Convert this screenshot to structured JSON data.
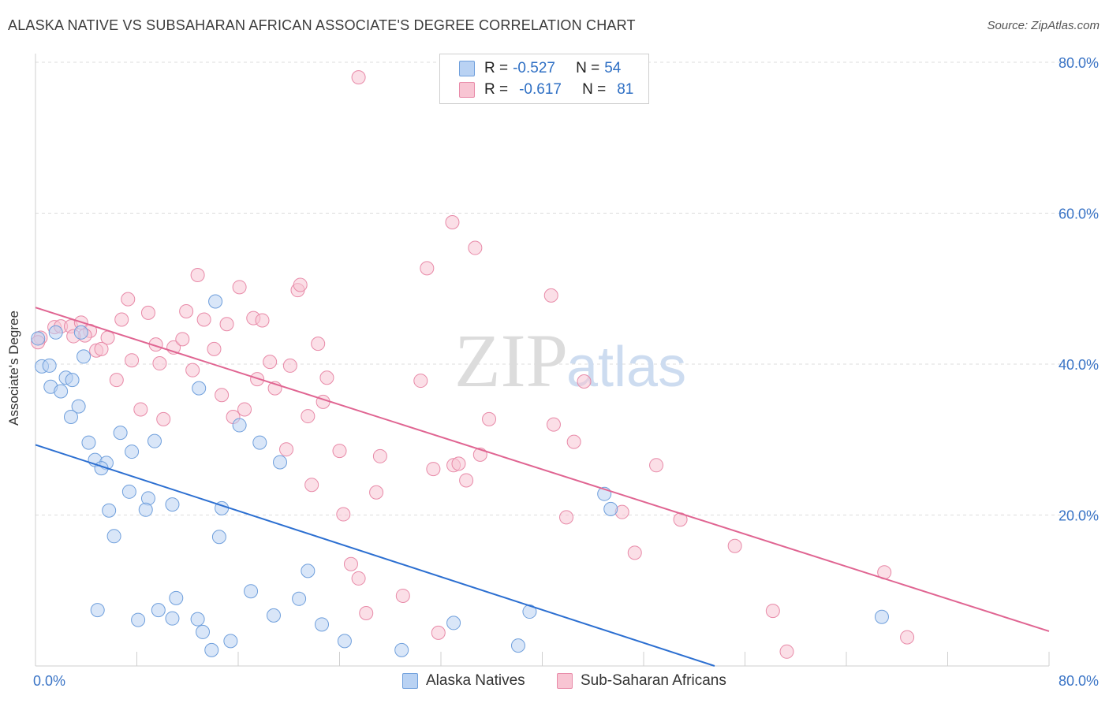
{
  "title": "ALASKA NATIVE VS SUBSAHARAN AFRICAN ASSOCIATE'S DEGREE CORRELATION CHART",
  "source": "Source: ZipAtlas.com",
  "watermark": {
    "zip": "ZIP",
    "atlas": "atlas"
  },
  "legend": {
    "r_label": "R =",
    "n_label": "N =",
    "rows": [
      {
        "r": "-0.527",
        "n": "54",
        "fill": "#b9d2f3",
        "stroke": "#6f9fdc"
      },
      {
        "r": "-0.617",
        "n": "81",
        "fill": "#f8c5d3",
        "stroke": "#e88aa8"
      }
    ]
  },
  "bottom_legend": [
    {
      "label": "Alaska Natives",
      "fill": "#b9d2f3",
      "stroke": "#6f9fdc"
    },
    {
      "label": "Sub-Saharan Africans",
      "fill": "#f8c5d3",
      "stroke": "#e88aa8"
    }
  ],
  "chart_data": {
    "type": "scatter",
    "title": "ALASKA NATIVE VS SUBSAHARAN AFRICAN ASSOCIATE'S DEGREE CORRELATION CHART",
    "xlabel": "",
    "ylabel": "Associate's Degree",
    "xlim": [
      0,
      80
    ],
    "ylim": [
      0,
      80
    ],
    "x_tick_labels": [
      "0.0%",
      "80.0%"
    ],
    "y_tick_labels": [
      "20.0%",
      "40.0%",
      "60.0%",
      "80.0%"
    ],
    "y_ticks": [
      20,
      40,
      60,
      80
    ],
    "grid": "horizontal dashed",
    "legend_position": "top-center",
    "series": [
      {
        "name": "Alaska Natives",
        "color": "#6f9fdc",
        "line_color": "#2c6fd1",
        "trend": {
          "x": [
            0,
            53.6
          ],
          "y": [
            29.3,
            0
          ]
        },
        "points": [
          [
            0.2,
            43.4
          ],
          [
            0.5,
            39.7
          ],
          [
            1.1,
            39.8
          ],
          [
            1.6,
            44.2
          ],
          [
            1.2,
            37.0
          ],
          [
            2.0,
            36.4
          ],
          [
            2.4,
            38.2
          ],
          [
            2.9,
            37.9
          ],
          [
            3.4,
            34.4
          ],
          [
            2.8,
            33.0
          ],
          [
            3.6,
            44.2
          ],
          [
            3.8,
            41.0
          ],
          [
            4.2,
            29.6
          ],
          [
            4.7,
            27.3
          ],
          [
            5.6,
            26.9
          ],
          [
            5.2,
            26.2
          ],
          [
            6.7,
            30.9
          ],
          [
            5.8,
            20.6
          ],
          [
            7.6,
            28.4
          ],
          [
            7.4,
            23.1
          ],
          [
            6.2,
            17.2
          ],
          [
            9.4,
            29.8
          ],
          [
            8.9,
            22.2
          ],
          [
            8.7,
            20.7
          ],
          [
            10.8,
            21.4
          ],
          [
            14.2,
            48.3
          ],
          [
            12.9,
            36.8
          ],
          [
            14.5,
            17.1
          ],
          [
            14.7,
            20.9
          ],
          [
            16.1,
            31.9
          ],
          [
            17.7,
            29.6
          ],
          [
            19.3,
            27.0
          ],
          [
            17.0,
            9.9
          ],
          [
            18.8,
            6.7
          ],
          [
            20.8,
            8.9
          ],
          [
            21.5,
            12.6
          ],
          [
            22.6,
            5.5
          ],
          [
            24.4,
            3.3
          ],
          [
            28.9,
            2.1
          ],
          [
            33.0,
            5.7
          ],
          [
            38.1,
            2.7
          ],
          [
            39.0,
            7.2
          ],
          [
            44.9,
            22.8
          ],
          [
            45.4,
            20.8
          ],
          [
            66.8,
            6.5
          ],
          [
            4.9,
            7.4
          ],
          [
            8.1,
            6.1
          ],
          [
            9.7,
            7.4
          ],
          [
            10.8,
            6.3
          ],
          [
            11.1,
            9.0
          ],
          [
            12.8,
            6.2
          ],
          [
            13.2,
            4.5
          ],
          [
            13.9,
            2.1
          ],
          [
            15.4,
            3.3
          ]
        ]
      },
      {
        "name": "Sub-Saharan Africans",
        "color": "#e88aa8",
        "line_color": "#e06592",
        "trend": {
          "x": [
            0,
            80
          ],
          "y": [
            47.5,
            4.6
          ]
        },
        "points": [
          [
            0.4,
            43.5
          ],
          [
            1.5,
            44.9
          ],
          [
            2.0,
            45.0
          ],
          [
            2.8,
            45.0
          ],
          [
            3.6,
            45.5
          ],
          [
            4.3,
            44.4
          ],
          [
            4.8,
            41.8
          ],
          [
            3.9,
            43.8
          ],
          [
            5.7,
            43.5
          ],
          [
            7.3,
            48.6
          ],
          [
            6.8,
            45.9
          ],
          [
            8.9,
            46.8
          ],
          [
            6.4,
            37.9
          ],
          [
            7.6,
            40.5
          ],
          [
            8.3,
            34.0
          ],
          [
            9.5,
            42.6
          ],
          [
            9.8,
            40.1
          ],
          [
            10.1,
            32.7
          ],
          [
            10.9,
            42.2
          ],
          [
            11.6,
            43.3
          ],
          [
            11.9,
            47.0
          ],
          [
            12.4,
            39.2
          ],
          [
            12.8,
            51.8
          ],
          [
            13.3,
            45.9
          ],
          [
            14.1,
            42.0
          ],
          [
            14.7,
            35.9
          ],
          [
            15.1,
            45.3
          ],
          [
            15.6,
            33.0
          ],
          [
            16.1,
            50.2
          ],
          [
            16.5,
            34.0
          ],
          [
            17.2,
            46.1
          ],
          [
            17.5,
            38.0
          ],
          [
            17.9,
            45.8
          ],
          [
            18.5,
            40.3
          ],
          [
            18.9,
            36.8
          ],
          [
            19.8,
            28.7
          ],
          [
            20.1,
            39.8
          ],
          [
            20.7,
            49.8
          ],
          [
            20.9,
            50.5
          ],
          [
            21.5,
            33.1
          ],
          [
            21.8,
            24.0
          ],
          [
            22.3,
            42.7
          ],
          [
            22.7,
            35.0
          ],
          [
            23.0,
            38.2
          ],
          [
            24.0,
            28.5
          ],
          [
            24.3,
            20.1
          ],
          [
            24.9,
            13.5
          ],
          [
            25.5,
            11.6
          ],
          [
            25.5,
            78.0
          ],
          [
            26.1,
            7.0
          ],
          [
            26.9,
            23.0
          ],
          [
            27.2,
            27.8
          ],
          [
            29.0,
            9.3
          ],
          [
            30.4,
            37.8
          ],
          [
            30.9,
            52.7
          ],
          [
            31.4,
            26.1
          ],
          [
            31.8,
            4.4
          ],
          [
            32.9,
            58.8
          ],
          [
            33.0,
            26.6
          ],
          [
            33.4,
            26.8
          ],
          [
            34.0,
            24.6
          ],
          [
            34.7,
            55.4
          ],
          [
            35.1,
            28.0
          ],
          [
            35.8,
            32.7
          ],
          [
            40.7,
            49.1
          ],
          [
            40.9,
            32.0
          ],
          [
            41.9,
            19.7
          ],
          [
            42.5,
            29.7
          ],
          [
            43.3,
            37.7
          ],
          [
            46.3,
            20.4
          ],
          [
            47.3,
            15.0
          ],
          [
            49.0,
            26.6
          ],
          [
            50.9,
            19.4
          ],
          [
            55.2,
            15.9
          ],
          [
            58.2,
            7.3
          ],
          [
            59.3,
            1.9
          ],
          [
            67.0,
            12.4
          ],
          [
            68.8,
            3.8
          ],
          [
            0.2,
            42.9
          ],
          [
            3.0,
            43.7
          ],
          [
            5.2,
            42.0
          ]
        ]
      }
    ]
  }
}
